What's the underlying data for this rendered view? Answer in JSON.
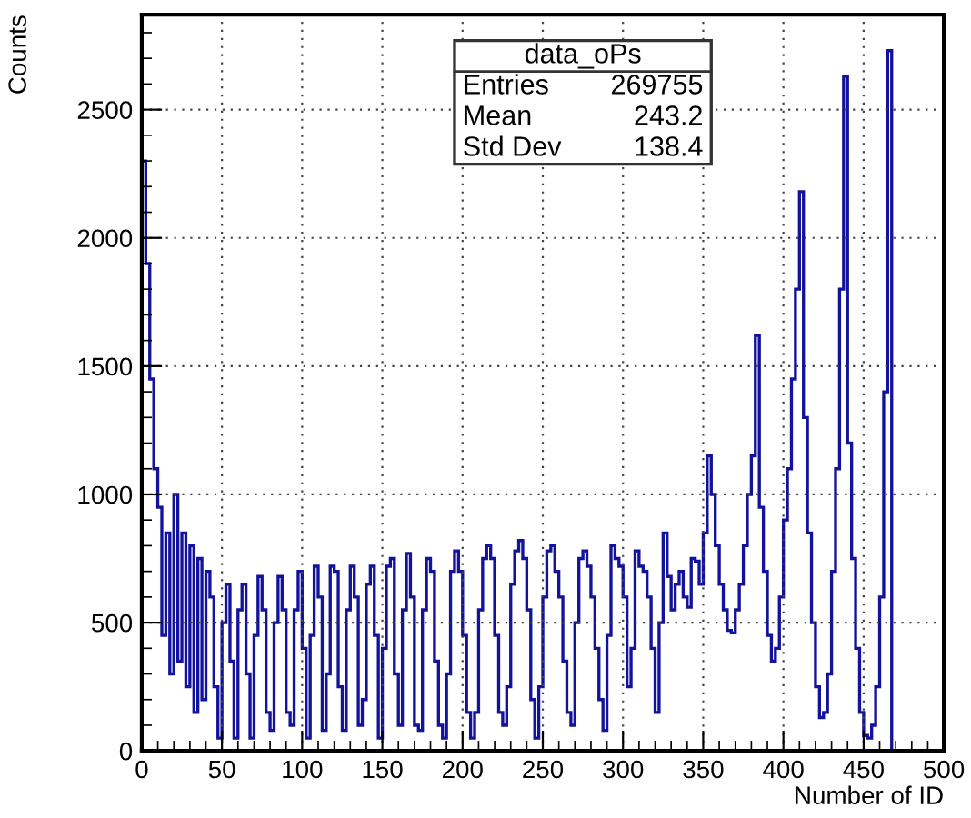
{
  "chart_data": {
    "type": "histogram",
    "xlabel": "Number of ID",
    "ylabel": "Counts",
    "color": "#12129a",
    "bins": [
      0,
      2.5,
      5,
      7.5,
      10,
      12.5,
      15,
      17.5,
      20,
      22.5,
      25,
      27.5,
      30,
      32.5,
      35,
      37.5,
      40,
      42.5,
      45,
      47.5,
      50,
      52.5,
      55,
      57.5,
      60,
      62.5,
      65,
      67.5,
      70,
      72.5,
      75,
      77.5,
      80,
      82.5,
      85,
      87.5,
      90,
      92.5,
      95,
      97.5,
      100,
      102.5,
      105,
      107.5,
      110,
      112.5,
      115,
      117.5,
      120,
      122.5,
      125,
      127.5,
      130,
      132.5,
      135,
      137.5,
      140,
      142.5,
      145,
      147.5,
      150,
      152.5,
      155,
      157.5,
      160,
      162.5,
      165,
      167.5,
      170,
      172.5,
      175,
      177.5,
      180,
      182.5,
      185,
      187.5,
      190,
      192.5,
      195,
      197.5,
      200,
      202.5,
      205,
      207.5,
      210,
      212.5,
      215,
      217.5,
      220,
      222.5,
      225,
      227.5,
      230,
      232.5,
      235,
      237.5,
      240,
      242.5,
      245,
      247.5,
      250,
      252.5,
      255,
      257.5,
      260,
      262.5,
      265,
      267.5,
      270,
      272.5,
      275,
      277.5,
      280,
      282.5,
      285,
      287.5,
      290,
      292.5,
      295,
      297.5,
      300,
      302.5,
      305,
      307.5,
      310,
      312.5,
      315,
      317.5,
      320,
      322.5,
      325,
      327.5,
      330,
      332.5,
      335,
      337.5,
      340,
      342.5,
      345,
      347.5,
      350,
      352.5,
      355,
      357.5,
      360,
      362.5,
      365,
      367.5,
      370,
      372.5,
      375,
      377.5,
      380,
      382.5,
      385,
      387.5,
      390,
      392.5,
      395,
      397.5,
      400,
      402.5,
      405,
      407.5,
      410,
      412.5,
      415,
      417.5,
      420,
      422.5,
      425,
      427.5,
      430,
      432.5,
      435,
      437.5,
      440,
      442.5,
      445,
      447.5,
      450,
      452.5,
      455,
      457.5,
      460,
      462.5,
      465,
      467.5,
      470,
      500
    ],
    "values": [
      2300,
      1900,
      1450,
      1100,
      950,
      450,
      850,
      300,
      1000,
      350,
      850,
      250,
      800,
      150,
      750,
      200,
      700,
      600,
      250,
      50,
      500,
      650,
      350,
      50,
      550,
      650,
      300,
      50,
      450,
      680,
      550,
      150,
      80,
      500,
      680,
      550,
      150,
      100,
      550,
      700,
      400,
      50,
      450,
      720,
      600,
      80,
      300,
      720,
      700,
      250,
      80,
      550,
      720,
      600,
      100,
      200,
      650,
      720,
      450,
      50,
      400,
      720,
      750,
      300,
      100,
      550,
      770,
      600,
      100,
      80,
      550,
      750,
      700,
      350,
      100,
      50,
      300,
      700,
      780,
      700,
      450,
      150,
      50,
      150,
      550,
      750,
      800,
      750,
      450,
      150,
      100,
      250,
      650,
      780,
      820,
      750,
      550,
      200,
      50,
      250,
      600,
      780,
      800,
      700,
      600,
      350,
      150,
      100,
      500,
      750,
      780,
      720,
      600,
      400,
      200,
      80,
      450,
      800,
      750,
      720,
      600,
      250,
      400,
      780,
      720,
      700,
      600,
      400,
      150,
      500,
      850,
      680,
      550,
      650,
      700,
      600,
      560,
      750,
      740,
      650,
      850,
      1150,
      1000,
      800,
      650,
      550,
      470,
      460,
      550,
      650,
      800,
      1000,
      1150,
      1620,
      950,
      700,
      450,
      350,
      400,
      600,
      900,
      1100,
      1450,
      1800,
      2180,
      1300,
      850,
      500,
      250,
      130,
      150,
      300,
      700,
      1100,
      1800,
      2630,
      1200,
      750,
      400,
      150,
      60,
      50,
      100,
      250,
      600,
      1400,
      2730,
      0,
      0
    ],
    "xlim": [
      0,
      500
    ],
    "ylim": [
      0,
      2870
    ],
    "xticks": [
      0,
      50,
      100,
      150,
      200,
      250,
      300,
      350,
      400,
      450,
      500
    ],
    "yticks": [
      0,
      500,
      1000,
      1500,
      2000,
      2500
    ],
    "grid": true,
    "annotations": [
      "data_oPs",
      "Entries",
      "269755",
      "Mean",
      "243.2",
      "Std Dev",
      "138.4"
    ]
  }
}
